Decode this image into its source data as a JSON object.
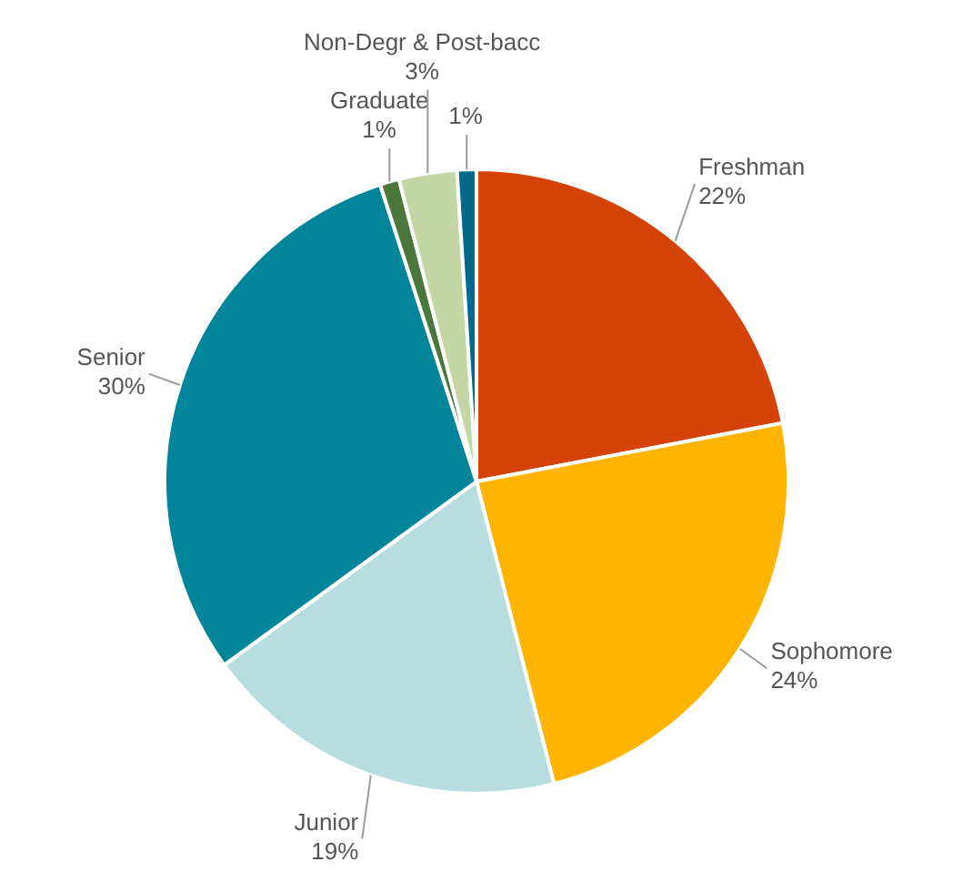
{
  "chart_data": {
    "type": "pie",
    "categories": [
      "Freshman",
      "Sophomore",
      "Junior",
      "Senior",
      "Graduate",
      "Non-Degr & Post-bacc",
      null
    ],
    "values": [
      22,
      24,
      19,
      30,
      1,
      3,
      1
    ],
    "colors": [
      "#d64309",
      "#ffb500",
      "#b8dde1",
      "#00859b",
      "#4a773c",
      "#c4d6a4",
      "#006a8e"
    ],
    "value_labels": [
      "22%",
      "24%",
      "19%",
      "30%",
      "1%",
      "3%",
      "1%"
    ],
    "data_labels": true,
    "legend": false
  }
}
